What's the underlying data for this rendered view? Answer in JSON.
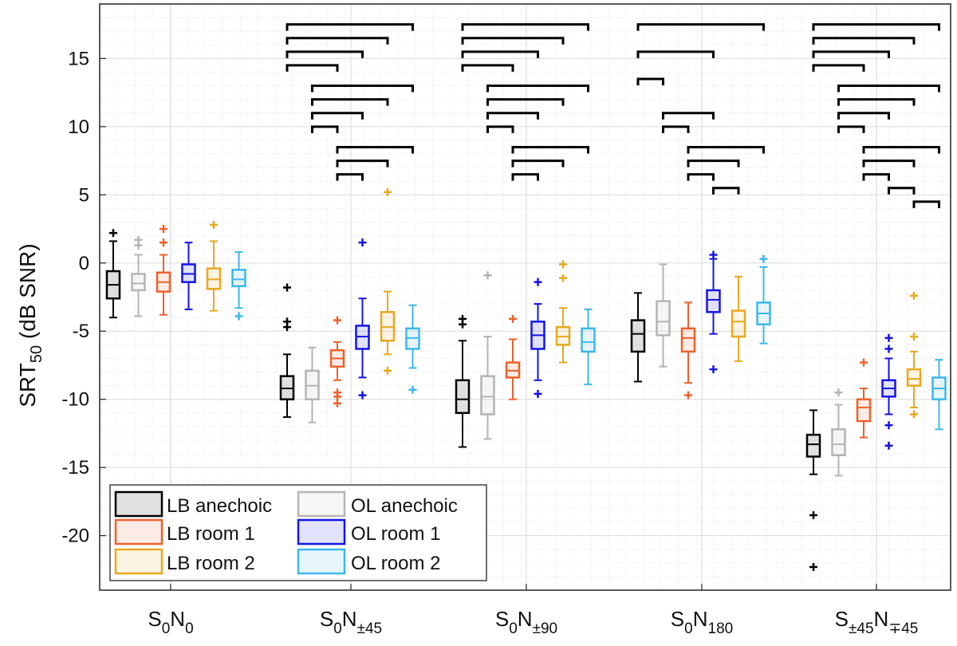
{
  "chart_data": {
    "type": "boxplot",
    "title": "",
    "ylabel": "SRT",
    "ylabel_sub": "50",
    "ylabel_units": " (dB SNR)",
    "ylim": [
      -24,
      19
    ],
    "yticks": [
      15,
      10,
      5,
      0,
      -5,
      -10,
      -15,
      -20
    ],
    "ytick_labels": [
      "15",
      "10",
      "5",
      "0",
      "-5",
      "-10",
      "-15",
      "-20"
    ],
    "grid": true,
    "categories": [
      {
        "base": "S",
        "s_sub": "0",
        "mid": "N",
        "n_sub": "0"
      },
      {
        "base": "S",
        "s_sub": "0",
        "mid": "N",
        "n_sub": "±45"
      },
      {
        "base": "S",
        "s_sub": "0",
        "mid": "N",
        "n_sub": "±90"
      },
      {
        "base": "S",
        "s_sub": "0",
        "mid": "N",
        "n_sub": "180"
      },
      {
        "base": "S",
        "s_sub": "±45",
        "mid": "N",
        "n_sub": "∓45"
      }
    ],
    "legend": {
      "placement": "bottom-left",
      "entries": [
        {
          "label": "LB anechoic",
          "color": "#000000"
        },
        {
          "label": "OL anechoic",
          "color": "#b4b4b4"
        },
        {
          "label": "LB room 1",
          "color": "#f0602a"
        },
        {
          "label": "OL room 1",
          "color": "#1414e6"
        },
        {
          "label": "LB room 2",
          "color": "#e8a81e"
        },
        {
          "label": "OL room 2",
          "color": "#3cb8ea"
        }
      ]
    },
    "series": [
      {
        "name": "LB anechoic",
        "color": "#000000",
        "boxes": [
          {
            "min": -4.0,
            "q1": -2.6,
            "median": -1.6,
            "q3": -0.6,
            "max": 1.6,
            "outliers": [
              2.2
            ]
          },
          {
            "min": -11.3,
            "q1": -10.0,
            "median": -9.2,
            "q3": -8.3,
            "max": -6.7,
            "outliers": [
              -1.8,
              -4.3,
              -4.7
            ]
          },
          {
            "min": -13.5,
            "q1": -11.0,
            "median": -10.0,
            "q3": -8.6,
            "max": -5.7,
            "outliers": [
              -4.1,
              -4.5
            ]
          },
          {
            "min": -8.7,
            "q1": -6.5,
            "median": -5.2,
            "q3": -4.2,
            "max": -2.2,
            "outliers": []
          },
          {
            "min": -15.5,
            "q1": -14.2,
            "median": -13.3,
            "q3": -12.6,
            "max": -10.8,
            "outliers": [
              -18.5,
              -22.3
            ]
          }
        ]
      },
      {
        "name": "OL anechoic",
        "color": "#b4b4b4",
        "boxes": [
          {
            "min": -3.9,
            "q1": -2.0,
            "median": -1.5,
            "q3": -0.8,
            "max": 0.6,
            "outliers": [
              1.3,
              1.7
            ]
          },
          {
            "min": -11.7,
            "q1": -10.0,
            "median": -9.0,
            "q3": -7.9,
            "max": -6.2,
            "outliers": []
          },
          {
            "min": -12.9,
            "q1": -11.1,
            "median": -9.8,
            "q3": -8.3,
            "max": -5.4,
            "outliers": [
              -0.9
            ]
          },
          {
            "min": -7.6,
            "q1": -5.3,
            "median": -4.3,
            "q3": -2.8,
            "max": -0.1,
            "outliers": []
          },
          {
            "min": -15.6,
            "q1": -14.1,
            "median": -13.3,
            "q3": -12.2,
            "max": -10.4,
            "outliers": [
              -9.5
            ]
          }
        ]
      },
      {
        "name": "LB room 1",
        "color": "#f0602a",
        "boxes": [
          {
            "min": -3.8,
            "q1": -2.1,
            "median": -1.4,
            "q3": -0.7,
            "max": 0.6,
            "outliers": [
              1.5,
              2.5
            ]
          },
          {
            "min": -8.6,
            "q1": -7.6,
            "median": -7.0,
            "q3": -6.4,
            "max": -5.8,
            "outliers": [
              -4.2,
              -9.5,
              -9.8,
              -10.3
            ]
          },
          {
            "min": -10.0,
            "q1": -8.4,
            "median": -7.9,
            "q3": -7.3,
            "max": -5.6,
            "outliers": [
              -4.1
            ]
          },
          {
            "min": -8.8,
            "q1": -6.5,
            "median": -5.5,
            "q3": -4.8,
            "max": -2.9,
            "outliers": [
              -9.7
            ]
          },
          {
            "min": -12.8,
            "q1": -11.6,
            "median": -10.6,
            "q3": -10.0,
            "max": -9.2,
            "outliers": [
              -7.3
            ]
          }
        ]
      },
      {
        "name": "OL room 1",
        "color": "#1414e6",
        "boxes": [
          {
            "min": -3.4,
            "q1": -1.4,
            "median": -0.8,
            "q3": -0.1,
            "max": 1.5,
            "outliers": []
          },
          {
            "min": -8.4,
            "q1": -6.3,
            "median": -5.4,
            "q3": -4.6,
            "max": -2.6,
            "outliers": [
              1.5,
              -9.7
            ]
          },
          {
            "min": -8.6,
            "q1": -6.3,
            "median": -5.3,
            "q3": -4.3,
            "max": -3.0,
            "outliers": [
              -1.4,
              -9.6
            ]
          },
          {
            "min": -5.2,
            "q1": -3.6,
            "median": -2.7,
            "q3": -2.0,
            "max": 0.3,
            "outliers": [
              0.6,
              -7.8
            ]
          },
          {
            "min": -11.1,
            "q1": -9.8,
            "median": -9.2,
            "q3": -8.6,
            "max": -7.0,
            "outliers": [
              -5.5,
              -6.3,
              -11.9,
              -13.4
            ]
          }
        ]
      },
      {
        "name": "LB room 2",
        "color": "#e8a81e",
        "boxes": [
          {
            "min": -3.5,
            "q1": -1.9,
            "median": -1.2,
            "q3": -0.4,
            "max": 1.6,
            "outliers": [
              2.8
            ]
          },
          {
            "min": -6.7,
            "q1": -5.7,
            "median": -4.7,
            "q3": -3.6,
            "max": -2.1,
            "outliers": [
              5.2,
              -7.9
            ]
          },
          {
            "min": -7.3,
            "q1": -6.0,
            "median": -5.4,
            "q3": -4.7,
            "max": -3.3,
            "outliers": [
              -0.1,
              -1.1
            ]
          },
          {
            "min": -7.2,
            "q1": -5.4,
            "median": -4.3,
            "q3": -3.5,
            "max": -1.0,
            "outliers": []
          },
          {
            "min": -10.6,
            "q1": -9.0,
            "median": -8.5,
            "q3": -7.8,
            "max": -6.5,
            "outliers": [
              -2.4,
              -5.4,
              -11.1
            ]
          }
        ]
      },
      {
        "name": "OL room 2",
        "color": "#3cb8ea",
        "boxes": [
          {
            "min": -3.3,
            "q1": -1.7,
            "median": -1.2,
            "q3": -0.5,
            "max": 0.8,
            "outliers": [
              -3.9
            ]
          },
          {
            "min": -7.7,
            "q1": -6.3,
            "median": -5.5,
            "q3": -4.8,
            "max": -3.1,
            "outliers": [
              -9.3
            ]
          },
          {
            "min": -8.9,
            "q1": -6.5,
            "median": -5.8,
            "q3": -4.8,
            "max": -3.4,
            "outliers": []
          },
          {
            "min": -5.9,
            "q1": -4.5,
            "median": -3.7,
            "q3": -2.9,
            "max": -0.3,
            "outliers": [
              0.3
            ]
          },
          {
            "min": -12.2,
            "q1": -10.0,
            "median": -9.2,
            "q3": -8.4,
            "max": -7.1,
            "outliers": []
          }
        ]
      }
    ],
    "significance_brackets": [
      {
        "group": 0,
        "pairs": []
      },
      {
        "group": 1,
        "pairs": [
          [
            0,
            5,
            17.5
          ],
          [
            0,
            4,
            16.5
          ],
          [
            0,
            3,
            15.5
          ],
          [
            0,
            2,
            14.5
          ],
          [
            1,
            5,
            13.0
          ],
          [
            1,
            4,
            12.0
          ],
          [
            1,
            3,
            11.0
          ],
          [
            1,
            2,
            10.0
          ],
          [
            2,
            5,
            8.5
          ],
          [
            2,
            4,
            7.5
          ],
          [
            2,
            3,
            6.5
          ]
        ]
      },
      {
        "group": 2,
        "pairs": [
          [
            0,
            5,
            17.5
          ],
          [
            0,
            4,
            16.5
          ],
          [
            0,
            3,
            15.5
          ],
          [
            0,
            2,
            14.5
          ],
          [
            1,
            5,
            13.0
          ],
          [
            1,
            4,
            12.0
          ],
          [
            1,
            3,
            11.0
          ],
          [
            1,
            2,
            10.0
          ],
          [
            2,
            5,
            8.5
          ],
          [
            2,
            4,
            7.5
          ],
          [
            2,
            3,
            6.5
          ]
        ]
      },
      {
        "group": 3,
        "pairs": [
          [
            0,
            5,
            17.5
          ],
          [
            0,
            3,
            15.5
          ],
          [
            0,
            1,
            13.5
          ],
          [
            1,
            3,
            11.0
          ],
          [
            1,
            2,
            10.0
          ],
          [
            2,
            5,
            8.5
          ],
          [
            2,
            4,
            7.5
          ],
          [
            2,
            3,
            6.5
          ],
          [
            3,
            4,
            5.5
          ]
        ]
      },
      {
        "group": 4,
        "pairs": [
          [
            0,
            5,
            17.5
          ],
          [
            0,
            4,
            16.5
          ],
          [
            0,
            3,
            15.5
          ],
          [
            0,
            2,
            14.5
          ],
          [
            1,
            5,
            13.0
          ],
          [
            1,
            4,
            12.0
          ],
          [
            1,
            3,
            11.0
          ],
          [
            1,
            2,
            10.0
          ],
          [
            2,
            5,
            8.5
          ],
          [
            2,
            4,
            7.5
          ],
          [
            2,
            3,
            6.5
          ],
          [
            3,
            4,
            5.5
          ],
          [
            4,
            5,
            4.5
          ]
        ]
      }
    ]
  }
}
